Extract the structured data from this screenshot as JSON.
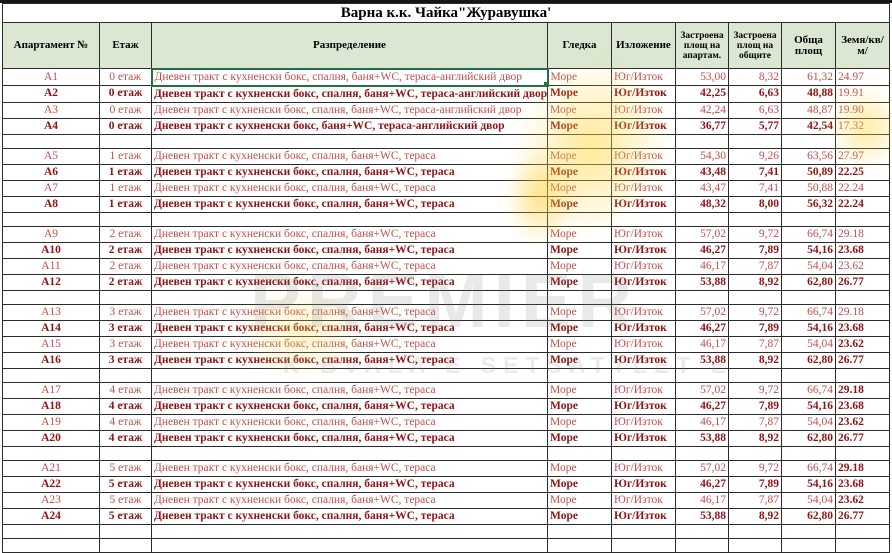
{
  "title": "Варна  к.к. Чайка\"Журавушка'",
  "columns": [
    {
      "key": "apt",
      "label": "Апартамент №"
    },
    {
      "key": "floor",
      "label": "Етаж"
    },
    {
      "key": "layout",
      "label": "Разпределение"
    },
    {
      "key": "view",
      "label": "Гледка"
    },
    {
      "key": "exposure",
      "label": "Изложение"
    },
    {
      "key": "built",
      "label": "Застроена площ на апартам."
    },
    {
      "key": "common",
      "label": "Застроена площ на общите"
    },
    {
      "key": "total",
      "label": "Обща площ"
    },
    {
      "key": "land",
      "label": "Земя/кв/м/"
    }
  ],
  "selection": {
    "row": "A1",
    "field": "layout"
  },
  "watermark": {
    "primary": "PREMIER",
    "secondary": "K BVALA E SETSATTLET E"
  },
  "rows": [
    {
      "apt": "A1",
      "floor": "0 етаж",
      "layout": "Дневен тракт с кухненски бокс, спалня, баня+WC, тераса-английский двор",
      "view": "Море",
      "exposure": "Юг/Изток",
      "built": "53,00",
      "common": "8,32",
      "total": "61,32",
      "land": "24.97",
      "bold": false,
      "land_bold": false
    },
    {
      "apt": "A2",
      "floor": "0 етаж",
      "layout": "Дневен тракт с кухненски бокс, спалня, баня+WC, тераса-английский двор",
      "view": "Море",
      "exposure": "Юг/Изток",
      "built": "42,25",
      "common": "6,63",
      "total": "48,88",
      "land": "19.91",
      "bold": true,
      "land_bold": false
    },
    {
      "apt": "A3",
      "floor": "0 етаж",
      "layout": "Дневен тракт с кухненски бокс, спалня, баня+WC, тераса-английский двор",
      "view": "Море",
      "exposure": "Юг/Изток",
      "built": "42,24",
      "common": "6,63",
      "total": "48,87",
      "land": "19.90",
      "bold": false,
      "land_bold": false
    },
    {
      "apt": "A4",
      "floor": "0 етаж",
      "layout": "Дневен тракт с кухненски бокс, баня+WC, тераса-английский двор",
      "view": "Море",
      "exposure": "Юг/Изток",
      "built": "36,77",
      "common": "5,77",
      "total": "42,54",
      "land": "17.32",
      "bold": true,
      "land_bold": false
    },
    {
      "apt": "A5",
      "floor": "1 етаж",
      "layout": "Дневен тракт с кухненски бокс, спалня, баня+WC, тераса",
      "view": "Море",
      "exposure": "Юг/Изток",
      "built": "54,30",
      "common": "9,26",
      "total": "63,56",
      "land": "27.97",
      "bold": false,
      "land_bold": false
    },
    {
      "apt": "A6",
      "floor": "1 етаж",
      "layout": "Дневен тракт с кухненски бокс, спалня, баня+WC, тераса",
      "view": "Море",
      "exposure": "Юг/Изток",
      "built": "43,48",
      "common": "7,41",
      "total": "50,89",
      "land": "22.25",
      "bold": true,
      "land_bold": true
    },
    {
      "apt": "A7",
      "floor": "1 етаж",
      "layout": "Дневен тракт с кухненски бокс, спалня, баня+WC, тераса",
      "view": "Море",
      "exposure": "Юг/Изток",
      "built": "43,47",
      "common": "7,41",
      "total": "50,88",
      "land": "22.24",
      "bold": false,
      "land_bold": false
    },
    {
      "apt": "A8",
      "floor": "1 етаж",
      "layout": "Дневен тракт с кухненски бокс, спалня, баня+WC, тераса",
      "view": "Море",
      "exposure": "Юг/Изток",
      "built": "48,32",
      "common": "8,00",
      "total": "56,32",
      "land": "22.24",
      "bold": true,
      "land_bold": true
    },
    {
      "apt": "A9",
      "floor": "2 етаж",
      "layout": "Дневен тракт с кухненски бокс, спалня, баня+WC, тераса",
      "view": "Море",
      "exposure": "Юг/Изток",
      "built": "57,02",
      "common": "9,72",
      "total": "66,74",
      "land": "29.18",
      "bold": false,
      "land_bold": false
    },
    {
      "apt": "A10",
      "floor": "2 етаж",
      "layout": "Дневен тракт с кухненски бокс, спалня, баня+WC, тераса",
      "view": "Море",
      "exposure": "Юг/Изток",
      "built": "46,27",
      "common": "7,89",
      "total": "54,16",
      "land": "23.68",
      "bold": true,
      "land_bold": true
    },
    {
      "apt": "A11",
      "floor": "2 етаж",
      "layout": "Дневен тракт с кухненски бокс, спалня, баня+WC, тераса",
      "view": "Море",
      "exposure": "Юг/Изток",
      "built": "46,17",
      "common": "7,87",
      "total": "54,04",
      "land": "23.62",
      "bold": false,
      "land_bold": false
    },
    {
      "apt": "A12",
      "floor": "2 етаж",
      "layout": "Дневен тракт с кухненски бокс, спалня, баня+WC, тераса",
      "view": "Море",
      "exposure": "Юг/Изток",
      "built": "53,88",
      "common": "8,92",
      "total": "62,80",
      "land": "26.77",
      "bold": true,
      "land_bold": true
    },
    {
      "apt": "A13",
      "floor": "3 етаж",
      "layout": "Дневен тракт с кухненски бокс, спалня, баня+WC, тераса",
      "view": "Море",
      "exposure": "Юг/Изток",
      "built": "57,02",
      "common": "9,72",
      "total": "66,74",
      "land": "29.18",
      "bold": false,
      "land_bold": false
    },
    {
      "apt": "A14",
      "floor": "3 етаж",
      "layout": "Дневен тракт с кухненски бокс, спалня, баня+WC, тераса",
      "view": "Море",
      "exposure": "Юг/Изток",
      "built": "46,27",
      "common": "7,89",
      "total": "54,16",
      "land": "23.68",
      "bold": true,
      "land_bold": true
    },
    {
      "apt": "A15",
      "floor": "3 етаж",
      "layout": "Дневен тракт с кухненски бокс, спалня, баня+WC, тераса",
      "view": "Море",
      "exposure": "Юг/Изток",
      "built": "46,17",
      "common": "7,87",
      "total": "54,04",
      "land": "23.62",
      "bold": false,
      "land_bold": true
    },
    {
      "apt": "A16",
      "floor": "3 етаж",
      "layout": "Дневен тракт с кухненски бокс, спалня, баня+WC, тераса",
      "view": "Море",
      "exposure": "Юг/Изток",
      "built": "53,88",
      "common": "8,92",
      "total": "62,80",
      "land": "26.77",
      "bold": true,
      "land_bold": true
    },
    {
      "apt": "A17",
      "floor": "4 етаж",
      "layout": "Дневен тракт с кухненски бокс, спалня, баня+WC, тераса",
      "view": "Море",
      "exposure": "Юг/Изток",
      "built": "57,02",
      "common": "9,72",
      "total": "66,74",
      "land": "29.18",
      "bold": false,
      "land_bold": true
    },
    {
      "apt": "A18",
      "floor": "4 етаж",
      "layout": "Дневен тракт с кухненски бокс, спалня, баня+WC, тераса",
      "view": "Море",
      "exposure": "Юг/Изток",
      "built": "46,27",
      "common": "7,89",
      "total": "54,16",
      "land": "23.68",
      "bold": true,
      "land_bold": true
    },
    {
      "apt": "A19",
      "floor": "4 етаж",
      "layout": "Дневен тракт с кухненски бокс, спалня, баня+WC, тераса",
      "view": "Море",
      "exposure": "Юг/Изток",
      "built": "46,17",
      "common": "7,87",
      "total": "54,04",
      "land": "23.62",
      "bold": false,
      "land_bold": true
    },
    {
      "apt": "A20",
      "floor": "4 етаж",
      "layout": "Дневен тракт с кухненски бокс, спалня, баня+WC, тераса",
      "view": "Море",
      "exposure": "Юг/Изток",
      "built": "53,88",
      "common": "8,92",
      "total": "62,80",
      "land": "26.77",
      "bold": true,
      "land_bold": true
    },
    {
      "apt": "A21",
      "floor": "5 етаж",
      "layout": "Дневен тракт с кухненски бокс, спалня, баня+WC, тераса",
      "view": "Море",
      "exposure": "Юг/Изток",
      "built": "57,02",
      "common": "9,72",
      "total": "66,74",
      "land": "29.18",
      "bold": false,
      "land_bold": true
    },
    {
      "apt": "A22",
      "floor": "5 етаж",
      "layout": "Дневен тракт с кухненски бокс, спалня, баня+WC, тераса",
      "view": "Море",
      "exposure": "Юг/Изток",
      "built": "46,27",
      "common": "7,89",
      "total": "54,16",
      "land": "23.68",
      "bold": true,
      "land_bold": true
    },
    {
      "apt": "A23",
      "floor": "5 етаж",
      "layout": "Дневен тракт с кухненски бокс, спалня, баня+WC, тераса",
      "view": "Море",
      "exposure": "Юг/Изток",
      "built": "46,17",
      "common": "7,87",
      "total": "54,04",
      "land": "23.62",
      "bold": false,
      "land_bold": true
    },
    {
      "apt": "A24",
      "floor": "5 етаж",
      "layout": "Дневен тракт с кухненски бокс, спалня, баня+WC, тераса",
      "view": "Море",
      "exposure": "Юг/Изток",
      "built": "53,88",
      "common": "8,92",
      "total": "62,80",
      "land": "26.77",
      "bold": true,
      "land_bold": true
    }
  ]
}
